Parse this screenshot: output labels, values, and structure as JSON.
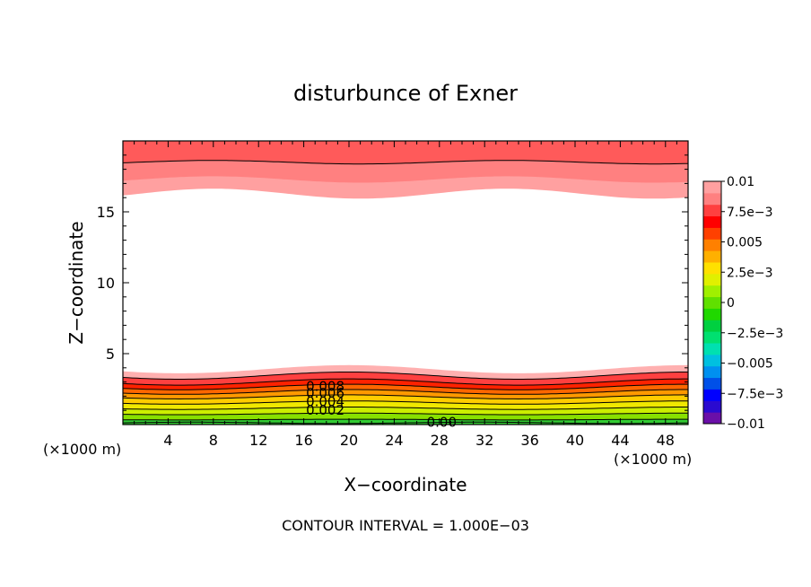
{
  "chart_data": {
    "type": "contour",
    "title": "disturbunce of Exner",
    "xlabel": "X−coordinate",
    "ylabel": "Z−coordinate",
    "x_unit_label_left": "(×1000 m)",
    "x_unit_label_right": "(×1000 m)",
    "footer": "CONTOUR INTERVAL = 1.000E−03",
    "xlim": [
      0,
      50
    ],
    "ylim": [
      0,
      20
    ],
    "x_ticks": [
      4,
      8,
      12,
      16,
      20,
      24,
      28,
      32,
      36,
      40,
      44,
      48
    ],
    "x_tick_labels": [
      "4",
      "8",
      "12",
      "16",
      "20",
      "24",
      "28",
      "32",
      "36",
      "40",
      "44",
      "48"
    ],
    "y_ticks": [
      5,
      10,
      15
    ],
    "y_tick_labels": [
      "5",
      "10",
      "15"
    ],
    "contour_labels": [
      {
        "text": "0.008",
        "x": 17.9,
        "z": 2.7
      },
      {
        "text": "0.006",
        "x": 17.9,
        "z": 2.2
      },
      {
        "text": "0.004",
        "x": 17.9,
        "z": 1.6
      },
      {
        "text": "0.002",
        "x": 17.9,
        "z": 1.0
      },
      {
        "text": "0.00",
        "x": 28.2,
        "z": 0.15
      }
    ],
    "levels": [
      -0.01,
      -0.009,
      -0.008,
      -0.007,
      -0.006,
      -0.005,
      -0.004,
      -0.003,
      -0.002,
      -0.001,
      0,
      0.001,
      0.002,
      0.003,
      0.004,
      0.005,
      0.006,
      0.007,
      0.008,
      0.009,
      0.01
    ],
    "colorbar": {
      "colors": [
        "#6a0fa8",
        "#2a0ad0",
        "#0000ff",
        "#0050e8",
        "#0090f0",
        "#00c0e0",
        "#00e0b0",
        "#00e070",
        "#00d040",
        "#20d800",
        "#60e000",
        "#a0f000",
        "#e0f000",
        "#ffe000",
        "#ffb000",
        "#ff8000",
        "#ff4000",
        "#ff0000",
        "#ff4040",
        "#ff8080",
        "#ffa0a0"
      ],
      "tick_labels": [
        "−0.01",
        "−7.5e−3",
        "−0.005",
        "−2.5e−3",
        "0",
        "2.5e−3",
        "0.005",
        "7.5e−3",
        "0.01"
      ]
    },
    "grid": false
  }
}
